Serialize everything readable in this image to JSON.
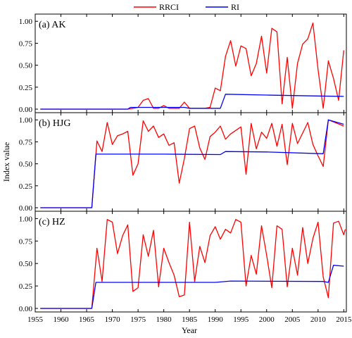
{
  "chart_data": {
    "type": "line",
    "xlabel": "Year",
    "ylabel": "Index value",
    "xlim": [
      1955,
      2015.5
    ],
    "xticks": [
      1955,
      1960,
      1965,
      1970,
      1975,
      1980,
      1985,
      1990,
      1995,
      2000,
      2005,
      2010,
      2015
    ],
    "yticks": [
      "0.00",
      "0.25",
      "0.50",
      "0.75",
      "1.00"
    ],
    "ylim": [
      0,
      1.05
    ],
    "grid": false,
    "legend": {
      "placement": "top-center",
      "entries": [
        {
          "name": "RRCI",
          "color": "#ff0000"
        },
        {
          "name": "RI",
          "color": "#0000ff"
        }
      ]
    },
    "panels": [
      {
        "label": "(a) AK",
        "series": [
          {
            "name": "RRCI",
            "color": "#ff0000",
            "points": [
              [
                1956,
                0
              ],
              [
                1966,
                0
              ],
              [
                1973,
                0
              ],
              [
                1974,
                0.01
              ],
              [
                1975,
                0.02
              ],
              [
                1976,
                0.1
              ],
              [
                1977,
                0.12
              ],
              [
                1978,
                0.01
              ],
              [
                1979,
                0.01
              ],
              [
                1980,
                0.04
              ],
              [
                1981,
                0.01
              ],
              [
                1982,
                0.01
              ],
              [
                1983,
                0.01
              ],
              [
                1984,
                0.08
              ],
              [
                1985,
                0.01
              ],
              [
                1986,
                0.01
              ],
              [
                1987,
                0.01
              ],
              [
                1988,
                0.01
              ],
              [
                1989,
                0.02
              ],
              [
                1990,
                0.24
              ],
              [
                1991,
                0.21
              ],
              [
                1992,
                0.6
              ],
              [
                1993,
                0.78
              ],
              [
                1994,
                0.49
              ],
              [
                1995,
                0.72
              ],
              [
                1996,
                0.69
              ],
              [
                1997,
                0.38
              ],
              [
                1998,
                0.52
              ],
              [
                1999,
                0.83
              ],
              [
                2000,
                0.41
              ],
              [
                2001,
                0.92
              ],
              [
                2002,
                0.88
              ],
              [
                2003,
                0.06
              ],
              [
                2004,
                0.59
              ],
              [
                2005,
                0.01
              ],
              [
                2006,
                0.52
              ],
              [
                2007,
                0.74
              ],
              [
                2008,
                0.8
              ],
              [
                2009,
                0.98
              ],
              [
                2010,
                0.45
              ],
              [
                2011,
                0.01
              ],
              [
                2012,
                0.55
              ],
              [
                2013,
                0.35
              ],
              [
                2014,
                0.1
              ],
              [
                2015,
                0.67
              ]
            ]
          },
          {
            "name": "RI",
            "color": "#0000ff",
            "points": [
              [
                1956,
                0
              ],
              [
                1973,
                0
              ],
              [
                1973.5,
                0.02
              ],
              [
                1984,
                0.02
              ],
              [
                1985,
                0.01
              ],
              [
                1991,
                0.01
              ],
              [
                1992,
                0.17
              ],
              [
                2000,
                0.16
              ],
              [
                2010,
                0.15
              ],
              [
                2015,
                0.145
              ]
            ]
          }
        ]
      },
      {
        "label": "(b) HJG",
        "series": [
          {
            "name": "RRCI",
            "color": "#ff0000",
            "points": [
              [
                1956,
                0
              ],
              [
                1966,
                0
              ],
              [
                1967,
                0.76
              ],
              [
                1968,
                0.64
              ],
              [
                1969,
                0.97
              ],
              [
                1970,
                0.72
              ],
              [
                1971,
                0.82
              ],
              [
                1972,
                0.84
              ],
              [
                1973,
                0.87
              ],
              [
                1974,
                0.37
              ],
              [
                1975,
                0.5
              ],
              [
                1976,
                0.99
              ],
              [
                1977,
                0.87
              ],
              [
                1978,
                0.93
              ],
              [
                1979,
                0.8
              ],
              [
                1980,
                0.84
              ],
              [
                1981,
                0.71
              ],
              [
                1982,
                0.74
              ],
              [
                1983,
                0.28
              ],
              [
                1984,
                0.56
              ],
              [
                1985,
                0.9
              ],
              [
                1986,
                0.93
              ],
              [
                1987,
                0.68
              ],
              [
                1988,
                0.55
              ],
              [
                1989,
                0.81
              ],
              [
                1990,
                0.86
              ],
              [
                1991,
                0.93
              ],
              [
                1992,
                0.78
              ],
              [
                1993,
                0.84
              ],
              [
                1994,
                0.88
              ],
              [
                1995,
                0.92
              ],
              [
                1996,
                0.38
              ],
              [
                1997,
                0.96
              ],
              [
                1998,
                0.67
              ],
              [
                1999,
                0.86
              ],
              [
                2000,
                0.79
              ],
              [
                2001,
                0.96
              ],
              [
                2002,
                0.7
              ],
              [
                2003,
                0.95
              ],
              [
                2004,
                0.49
              ],
              [
                2005,
                0.96
              ],
              [
                2006,
                0.73
              ],
              [
                2007,
                0.85
              ],
              [
                2008,
                0.97
              ],
              [
                2009,
                0.72
              ],
              [
                2010,
                0.59
              ],
              [
                2011,
                0.47
              ],
              [
                2012,
                1.0
              ],
              [
                2015,
                0.93
              ]
            ]
          },
          {
            "name": "RI",
            "color": "#0000ff",
            "points": [
              [
                1956,
                0
              ],
              [
                1966,
                0
              ],
              [
                1966.8,
                0.61
              ],
              [
                1980,
                0.61
              ],
              [
                1991,
                0.605
              ],
              [
                1992,
                0.64
              ],
              [
                2000,
                0.635
              ],
              [
                2011,
                0.615
              ],
              [
                2012,
                1.0
              ],
              [
                2015,
                0.95
              ]
            ]
          }
        ]
      },
      {
        "label": "(c) HZ",
        "series": [
          {
            "name": "RRCI",
            "color": "#ff0000",
            "points": [
              [
                1956,
                0
              ],
              [
                1966,
                0
              ],
              [
                1967,
                0.67
              ],
              [
                1968,
                0.3
              ],
              [
                1969,
                0.99
              ],
              [
                1970,
                0.96
              ],
              [
                1971,
                0.61
              ],
              [
                1972,
                0.81
              ],
              [
                1973,
                0.93
              ],
              [
                1974,
                0.19
              ],
              [
                1975,
                0.23
              ],
              [
                1976,
                0.82
              ],
              [
                1977,
                0.58
              ],
              [
                1978,
                0.87
              ],
              [
                1979,
                0.24
              ],
              [
                1980,
                0.67
              ],
              [
                1981,
                0.51
              ],
              [
                1982,
                0.37
              ],
              [
                1983,
                0.13
              ],
              [
                1984,
                0.15
              ],
              [
                1985,
                0.96
              ],
              [
                1986,
                0.3
              ],
              [
                1987,
                0.69
              ],
              [
                1988,
                0.51
              ],
              [
                1989,
                0.81
              ],
              [
                1990,
                0.91
              ],
              [
                1991,
                0.77
              ],
              [
                1992,
                0.88
              ],
              [
                1993,
                0.84
              ],
              [
                1994,
                0.99
              ],
              [
                1995,
                0.96
              ],
              [
                1996,
                0.25
              ],
              [
                1997,
                0.59
              ],
              [
                1998,
                0.38
              ],
              [
                1999,
                0.92
              ],
              [
                2000,
                0.59
              ],
              [
                2001,
                0.23
              ],
              [
                2002,
                0.92
              ],
              [
                2003,
                0.88
              ],
              [
                2004,
                0.24
              ],
              [
                2005,
                0.67
              ],
              [
                2006,
                0.37
              ],
              [
                2007,
                0.9
              ],
              [
                2008,
                0.5
              ],
              [
                2009,
                0.78
              ],
              [
                2010,
                0.96
              ],
              [
                2011,
                0.35
              ],
              [
                2012,
                0.12
              ],
              [
                2013,
                0.95
              ],
              [
                2014,
                0.97
              ],
              [
                2015,
                0.82
              ],
              [
                2015.3,
                0.88
              ]
            ]
          },
          {
            "name": "RI",
            "color": "#0000ff",
            "points": [
              [
                1956,
                0
              ],
              [
                1966,
                0
              ],
              [
                1966.8,
                0.29
              ],
              [
                1990,
                0.29
              ],
              [
                1993,
                0.305
              ],
              [
                2011,
                0.3
              ],
              [
                2012,
                0.29
              ],
              [
                2013,
                0.48
              ],
              [
                2015,
                0.47
              ]
            ]
          }
        ]
      }
    ]
  }
}
